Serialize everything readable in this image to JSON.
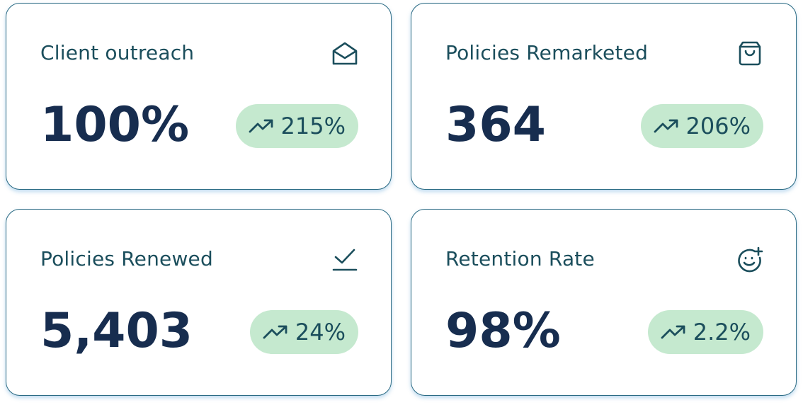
{
  "cards": [
    {
      "title": "Client outreach",
      "value": "100%",
      "change": "215%"
    },
    {
      "title": "Policies Remarketed",
      "value": "364",
      "change": "206%"
    },
    {
      "title": "Policies Renewed",
      "value": "5,403",
      "change": "24%"
    },
    {
      "title": "Retention Rate",
      "value": "98%",
      "change": "2.2%"
    }
  ]
}
